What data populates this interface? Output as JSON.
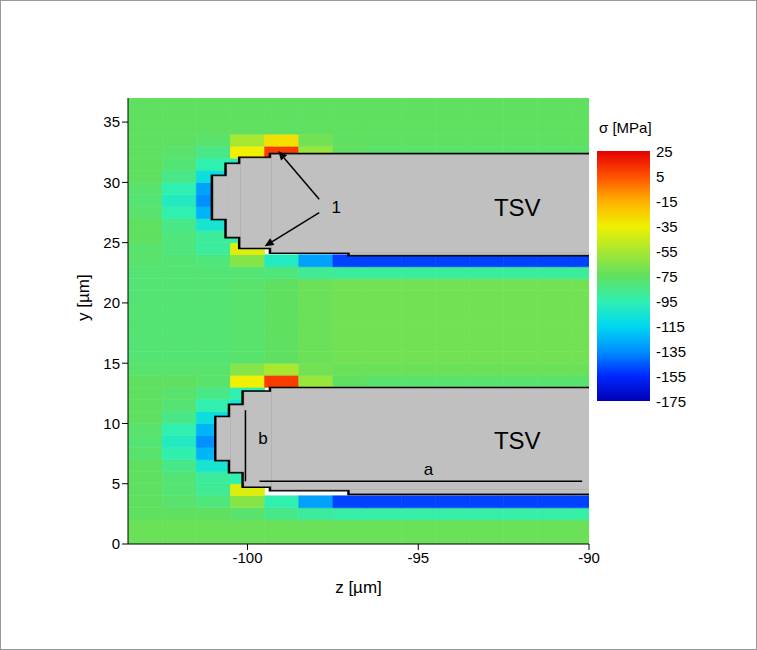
{
  "chart_data": {
    "type": "heatmap",
    "x_label": "z [µm]",
    "y_label": "y [µm]",
    "xlim": [
      -103.5,
      -90
    ],
    "xticks": [
      -100,
      -95,
      -90
    ],
    "ylim": [
      0,
      37
    ],
    "yticks": [
      0,
      5,
      10,
      15,
      20,
      25,
      30,
      35
    ],
    "z": [
      -103,
      -102,
      -101,
      -100,
      -99,
      -98,
      -97,
      -96,
      -95,
      -94,
      -93,
      -92,
      -91,
      -90
    ],
    "y": [
      0.5,
      1.5,
      2.5,
      3.5,
      4.5,
      5.5,
      6.5,
      7.5,
      8.5,
      9.5,
      10.5,
      11.5,
      12.5,
      13.5,
      14.5,
      15.5,
      16.5,
      17.5,
      18.5,
      19.5,
      20.5,
      21.5,
      22.5,
      23.5,
      24.5,
      25.5,
      26.5,
      27.5,
      28.5,
      29.5,
      30.5,
      31.5,
      32.5,
      33.5,
      34.5,
      35.5,
      36.5
    ],
    "cells": [
      [
        -72,
        -72,
        -72,
        -72,
        -72,
        -72,
        -72,
        -72,
        -72,
        -72,
        -72,
        -72,
        -72,
        -72
      ],
      [
        -72,
        -72,
        -72,
        -72,
        -72,
        -72,
        -72,
        -72,
        -72,
        -72,
        -72,
        -72,
        -72,
        -72
      ],
      [
        -75,
        -75,
        -75,
        -78,
        -85,
        -90,
        -92,
        -92,
        -92,
        -92,
        -92,
        -92,
        -92,
        -92
      ],
      [
        -75,
        -78,
        -82,
        -65,
        -95,
        -130,
        -150,
        -150,
        -150,
        -150,
        -150,
        -150,
        -150,
        -150
      ],
      [
        -75,
        -80,
        -88,
        -40,
        null,
        null,
        null,
        null,
        null,
        null,
        null,
        null,
        null,
        null
      ],
      [
        -75,
        -80,
        -90,
        -95,
        null,
        null,
        null,
        null,
        null,
        null,
        null,
        null,
        null,
        null
      ],
      [
        -75,
        -85,
        -105,
        -110,
        null,
        null,
        null,
        null,
        null,
        null,
        null,
        null,
        null,
        null
      ],
      [
        -78,
        -95,
        -125,
        null,
        null,
        null,
        null,
        null,
        null,
        null,
        null,
        null,
        null,
        null
      ],
      [
        -80,
        -100,
        -135,
        null,
        null,
        null,
        null,
        null,
        null,
        null,
        null,
        null,
        null,
        null
      ],
      [
        -78,
        -95,
        -125,
        null,
        null,
        null,
        null,
        null,
        null,
        null,
        null,
        null,
        null,
        null
      ],
      [
        -75,
        -85,
        -110,
        null,
        null,
        null,
        null,
        null,
        null,
        null,
        null,
        null,
        null,
        null
      ],
      [
        -75,
        -80,
        -95,
        -105,
        null,
        null,
        null,
        null,
        null,
        null,
        null,
        null,
        null,
        null
      ],
      [
        -75,
        -78,
        -85,
        -95,
        null,
        null,
        null,
        null,
        null,
        null,
        null,
        null,
        null,
        null
      ],
      [
        -75,
        -75,
        -78,
        -35,
        10,
        -60,
        -75,
        -78,
        -78,
        -78,
        -78,
        -78,
        -78,
        -78
      ],
      [
        -78,
        -78,
        -78,
        -65,
        -55,
        -70,
        -72,
        -72,
        -72,
        -72,
        -72,
        -72,
        -72,
        -72
      ],
      [
        -80,
        -80,
        -80,
        -78,
        -75,
        -72,
        -70,
        -70,
        -70,
        -70,
        -70,
        -70,
        -70,
        -70
      ],
      [
        -80,
        -80,
        -80,
        -78,
        -75,
        -72,
        -70,
        -70,
        -70,
        -70,
        -70,
        -70,
        -70,
        -70
      ],
      [
        -80,
        -80,
        -80,
        -78,
        -75,
        -72,
        -70,
        -70,
        -70,
        -70,
        -70,
        -70,
        -70,
        -70
      ],
      [
        -80,
        -80,
        -80,
        -78,
        -75,
        -72,
        -70,
        -70,
        -70,
        -70,
        -70,
        -70,
        -70,
        -70
      ],
      [
        -80,
        -80,
        -80,
        -78,
        -75,
        -72,
        -70,
        -70,
        -70,
        -70,
        -70,
        -70,
        -70,
        -70
      ],
      [
        -80,
        -80,
        -80,
        -78,
        -75,
        -72,
        -70,
        -70,
        -70,
        -70,
        -70,
        -70,
        -70,
        -70
      ],
      [
        -80,
        -80,
        -80,
        -78,
        -75,
        -72,
        -70,
        -70,
        -70,
        -70,
        -70,
        -70,
        -70,
        -70
      ],
      [
        -80,
        -80,
        -80,
        -80,
        -82,
        -88,
        -90,
        -90,
        -90,
        -90,
        -90,
        -90,
        -90,
        -90
      ],
      [
        -78,
        -80,
        -82,
        -65,
        -100,
        -130,
        -150,
        -150,
        -150,
        -150,
        -150,
        -150,
        -150,
        -150
      ],
      [
        -78,
        -82,
        -90,
        -40,
        null,
        null,
        null,
        null,
        null,
        null,
        null,
        null,
        null,
        null
      ],
      [
        -75,
        -82,
        -90,
        -95,
        null,
        null,
        null,
        null,
        null,
        null,
        null,
        null,
        null,
        null
      ],
      [
        -75,
        -85,
        -105,
        -110,
        null,
        null,
        null,
        null,
        null,
        null,
        null,
        null,
        null,
        null
      ],
      [
        -78,
        -95,
        -125,
        null,
        null,
        null,
        null,
        null,
        null,
        null,
        null,
        null,
        null,
        null
      ],
      [
        -80,
        -100,
        -135,
        null,
        null,
        null,
        null,
        null,
        null,
        null,
        null,
        null,
        null,
        null
      ],
      [
        -78,
        -95,
        -130,
        null,
        null,
        null,
        null,
        null,
        null,
        null,
        null,
        null,
        null,
        null
      ],
      [
        -75,
        -85,
        -110,
        null,
        null,
        null,
        null,
        null,
        null,
        null,
        null,
        null,
        null,
        null
      ],
      [
        -75,
        -80,
        -95,
        -100,
        null,
        null,
        null,
        null,
        null,
        null,
        null,
        null,
        null,
        null
      ],
      [
        -75,
        -78,
        -85,
        -35,
        10,
        -60,
        -75,
        -78,
        -78,
        -78,
        -78,
        -78,
        -78,
        -78
      ],
      [
        -75,
        -75,
        -78,
        -55,
        -30,
        -70,
        -75,
        -75,
        -75,
        -75,
        -75,
        -75,
        -75,
        -75
      ],
      [
        -75,
        -75,
        -75,
        -75,
        -75,
        -75,
        -75,
        -75,
        -75,
        -75,
        -75,
        -75,
        -75,
        -75
      ],
      [
        -75,
        -75,
        -75,
        -75,
        -75,
        -75,
        -75,
        -75,
        -75,
        -75,
        -75,
        -75,
        -75,
        -75
      ],
      [
        -75,
        -75,
        -75,
        -75,
        -75,
        -75,
        -75,
        -75,
        -75,
        -75,
        -75,
        -75,
        -75,
        -75
      ]
    ],
    "colorbar": {
      "title": "σ [MPa]",
      "range": [
        -175,
        25
      ],
      "ticks": [
        -175,
        -155,
        -135,
        -115,
        -95,
        -75,
        -55,
        -35,
        -15,
        5,
        25
      ],
      "colors": [
        "#0000b4",
        "#0028ff",
        "#0090ff",
        "#00d8f0",
        "#30f0b0",
        "#60e060",
        "#a8e830",
        "#f0f000",
        "#ffb000",
        "#ff5000",
        "#e60000"
      ]
    },
    "tsvs": [
      {
        "label": "TSV",
        "label_at": [
          -92.1,
          27.9
        ],
        "rects": [
          [
            -99.3,
            -90,
            24.2,
            32.3
          ],
          [
            -100.2,
            -99.3,
            24.6,
            32.0
          ],
          [
            -100.6,
            -100.2,
            25.5,
            31.5
          ],
          [
            -101,
            -100.6,
            27,
            30.5
          ],
          [
            -97,
            -90,
            24,
            24.2
          ]
        ]
      },
      {
        "label": "TSV",
        "label_at": [
          -92.1,
          8.6
        ],
        "rects": [
          [
            -99.3,
            -90,
            4.5,
            12.9
          ],
          [
            -100.1,
            -99.3,
            4.8,
            12.6
          ],
          [
            -100.5,
            -100.1,
            6,
            11.5
          ],
          [
            -100.9,
            -100.5,
            7,
            10.5
          ],
          [
            -97,
            -90,
            4.2,
            4.5
          ]
        ]
      }
    ],
    "annotations": [
      {
        "text": "1",
        "at": [
          -97.4,
          28
        ],
        "arrows": [
          [
            [
              -97.9,
              28.6
            ],
            [
              -99.1,
              32.6
            ]
          ],
          [
            [
              -97.9,
              27.5
            ],
            [
              -99.5,
              24.7
            ]
          ]
        ]
      },
      {
        "text": "a",
        "at": [
          -94.7,
          6.2
        ],
        "lines": [
          [
            [
              -99.65,
              5.2
            ],
            [
              -90.2,
              5.2
            ]
          ]
        ]
      },
      {
        "text": "b",
        "at": [
          -99.55,
          8.8
        ],
        "lines": [
          [
            [
              -100.06,
              5.2
            ],
            [
              -100.06,
              11.1
            ]
          ]
        ]
      }
    ]
  }
}
